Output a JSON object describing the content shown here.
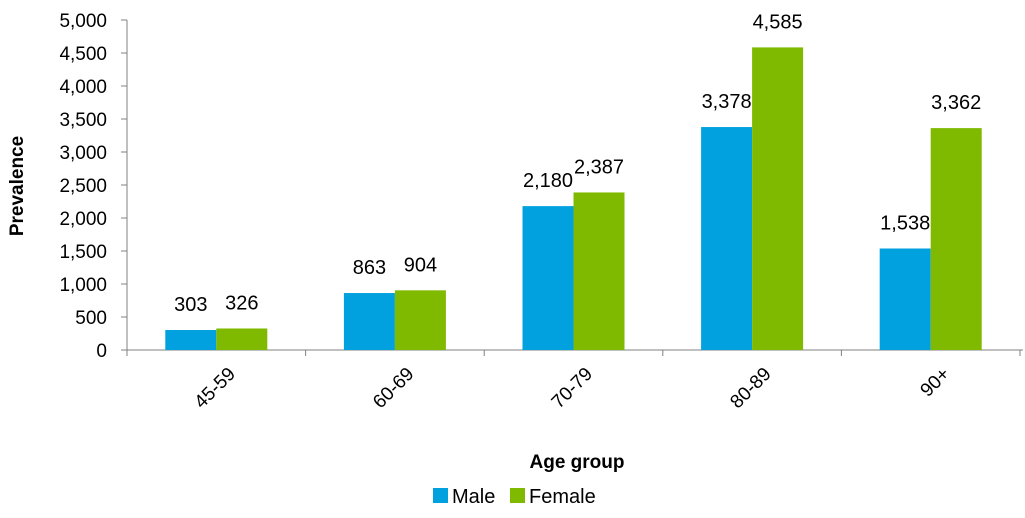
{
  "chart_data": {
    "type": "bar",
    "title": "",
    "xlabel": "Age group",
    "ylabel": "Prevalence",
    "categories": [
      "45-59",
      "60-69",
      "70-79",
      "80-89",
      "90+"
    ],
    "series": [
      {
        "name": "Male",
        "values": [
          303,
          863,
          2180,
          3378,
          1538
        ],
        "color": "#00A1DE",
        "labels": [
          "303",
          "863",
          "2,180",
          "3,378",
          "1,538"
        ]
      },
      {
        "name": "Female",
        "values": [
          326,
          904,
          2387,
          4585,
          3362
        ],
        "color": "#7FBA00",
        "labels": [
          "326",
          "904",
          "2,387",
          "4,585",
          "3,362"
        ]
      }
    ],
    "ylim": [
      0,
      5000
    ],
    "yticks": [
      0,
      500,
      1000,
      1500,
      2000,
      2500,
      3000,
      3500,
      4000,
      4500,
      5000
    ],
    "ytick_labels": [
      "0",
      "500",
      "1,000",
      "1,500",
      "2,000",
      "2,500",
      "3,000",
      "3,500",
      "4,000",
      "4,500",
      "5,000"
    ],
    "grid": false,
    "legend_position": "bottom"
  },
  "colors": {
    "axis": "#808080"
  }
}
